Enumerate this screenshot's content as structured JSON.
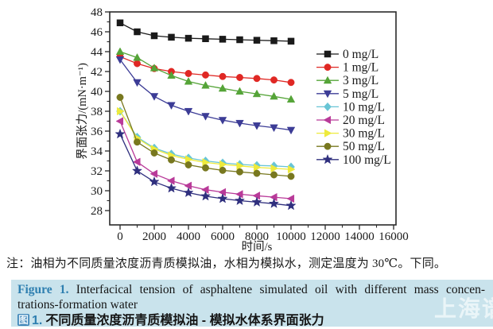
{
  "figure": {
    "note": "注：油相为不同质量浓度沥青质模拟油，水相为模拟水，测定温度为 30℃。下同。",
    "caption_en_label": "Figure 1.",
    "caption_en_line1": "Interfacical tension of asphaltene simulated oil with different mass concen-",
    "caption_en_line2": "trations-formation water",
    "caption_zh_icon": "图",
    "caption_zh_num": "1.",
    "caption_zh_text": "不同质量浓度沥青质模拟油 - 模拟水体系界面张力",
    "watermark": "上海谱"
  },
  "chart_data": {
    "type": "line",
    "title": "",
    "xlabel": "时间/s",
    "ylabel": "界面张力/(mN·m⁻¹)",
    "xlim": [
      0,
      16000
    ],
    "ylim": [
      28,
      48
    ],
    "x_ticks_major": [
      0,
      2000,
      4000,
      6000,
      8000,
      10000,
      12000,
      14000,
      16000
    ],
    "x_ticks_minor": [
      1000,
      3000,
      5000,
      7000,
      9000,
      11000,
      13000,
      15000
    ],
    "y_ticks_major": [
      28,
      30,
      32,
      34,
      36,
      38,
      40,
      42,
      44,
      46,
      48
    ],
    "y_ticks_minor": [
      29,
      31,
      33,
      35,
      37,
      39,
      41,
      43,
      45,
      47
    ],
    "grid": false,
    "legend_position": "inside-right",
    "x": [
      0,
      1000,
      2000,
      3000,
      4000,
      5000,
      6000,
      7000,
      8000,
      9000,
      10000
    ],
    "series": [
      {
        "name": "0 mg/L",
        "marker": "square",
        "color": "#1a1a1a",
        "values": [
          46.9,
          46.0,
          45.6,
          45.45,
          45.35,
          45.3,
          45.25,
          45.2,
          45.15,
          45.1,
          45.05
        ]
      },
      {
        "name": "1 mg/L",
        "marker": "circle",
        "color": "#e02824",
        "values": [
          43.5,
          42.8,
          42.3,
          42.0,
          41.8,
          41.65,
          41.5,
          41.4,
          41.3,
          41.15,
          40.9
        ]
      },
      {
        "name": "3 mg/L",
        "marker": "triangle-up",
        "color": "#55a438",
        "values": [
          44.0,
          43.4,
          42.35,
          41.6,
          41.0,
          40.6,
          40.3,
          40.0,
          39.75,
          39.5,
          39.2
        ]
      },
      {
        "name": "5 mg/L",
        "marker": "triangle-down",
        "color": "#3c3c96",
        "values": [
          43.2,
          40.9,
          39.5,
          38.6,
          38.0,
          37.5,
          37.1,
          36.8,
          36.55,
          36.35,
          36.1
        ]
      },
      {
        "name": "10 mg/L",
        "marker": "diamond",
        "color": "#68c5d5",
        "values": [
          38.0,
          35.4,
          34.3,
          33.7,
          33.3,
          33.0,
          32.8,
          32.65,
          32.55,
          32.5,
          32.4
        ]
      },
      {
        "name": "20 mg/L",
        "marker": "triangle-left",
        "color": "#b93a99",
        "values": [
          37.0,
          32.9,
          31.7,
          31.0,
          30.5,
          30.1,
          29.85,
          29.65,
          29.5,
          29.35,
          29.2
        ]
      },
      {
        "name": "30 mg/L",
        "marker": "triangle-right",
        "color": "#eeea3c",
        "values": [
          38.0,
          35.3,
          34.2,
          33.55,
          33.15,
          32.85,
          32.65,
          32.5,
          32.35,
          32.25,
          32.15
        ]
      },
      {
        "name": "50 mg/L",
        "marker": "circle",
        "color": "#78781f",
        "values": [
          39.4,
          34.9,
          33.8,
          33.1,
          32.6,
          32.3,
          32.05,
          31.9,
          31.75,
          31.6,
          31.45
        ]
      },
      {
        "name": "100 mg/L",
        "marker": "star",
        "color": "#2f2f7e",
        "values": [
          35.7,
          32.0,
          30.9,
          30.25,
          29.8,
          29.45,
          29.2,
          29.0,
          28.85,
          28.7,
          28.5
        ]
      }
    ]
  }
}
